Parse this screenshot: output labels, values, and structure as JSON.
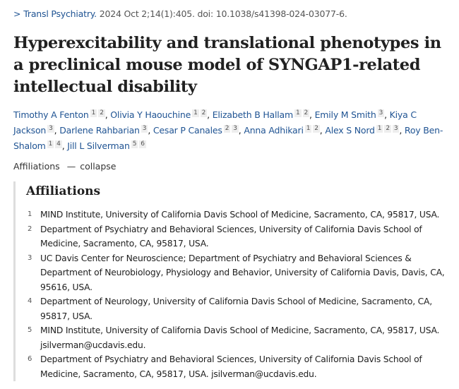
{
  "citation": {
    "journal": "Transl Psychiatry.",
    "details": "2024 Oct 2;14(1):405. doi: 10.1038/s41398-024-03077-6."
  },
  "title": "Hyperexcitability and translational phenotypes in a preclinical mouse model of SYNGAP1-related intellectual disability",
  "authors": [
    {
      "name": "Timothy A Fenton",
      "sups": [
        "1",
        "2"
      ]
    },
    {
      "name": "Olivia Y Haouchine",
      "sups": [
        "1",
        "2"
      ]
    },
    {
      "name": "Elizabeth B Hallam",
      "sups": [
        "1",
        "2"
      ]
    },
    {
      "name": "Emily M Smith",
      "sups": [
        "3"
      ]
    },
    {
      "name": "Kiya C Jackson",
      "sups": [
        "3"
      ]
    },
    {
      "name": "Darlene Rahbarian",
      "sups": [
        "3"
      ]
    },
    {
      "name": "Cesar P Canales",
      "sups": [
        "2",
        "3"
      ]
    },
    {
      "name": "Anna Adhikari",
      "sups": [
        "1",
        "2"
      ]
    },
    {
      "name": "Alex S Nord",
      "sups": [
        "1",
        "2",
        "3"
      ]
    },
    {
      "name": "Roy Ben-Shalom",
      "sups": [
        "1",
        "4"
      ]
    },
    {
      "name": "Jill L Silverman",
      "sups": [
        "5",
        "6"
      ]
    }
  ],
  "affiliations_toggle": {
    "label": "Affiliations",
    "action": "collapse"
  },
  "affiliations": {
    "heading": "Affiliations",
    "items": [
      {
        "n": "1",
        "text": "MIND Institute, University of California Davis School of Medicine, Sacramento, CA, 95817, USA."
      },
      {
        "n": "2",
        "text": "Department of Psychiatry and Behavioral Sciences, University of California Davis School of Medicine, Sacramento, CA, 95817, USA."
      },
      {
        "n": "3",
        "text": "UC Davis Center for Neuroscience; Department of Psychiatry and Behavioral Sciences & Department of Neurobiology, Physiology and Behavior, University of California Davis, Davis, CA, 95616, USA."
      },
      {
        "n": "4",
        "text": "Department of Neurology, University of California Davis School of Medicine, Sacramento, CA, 95817, USA."
      },
      {
        "n": "5",
        "text": "MIND Institute, University of California Davis School of Medicine, Sacramento, CA, 95817, USA. jsilverman@ucdavis.edu."
      },
      {
        "n": "6",
        "text": "Department of Psychiatry and Behavioral Sciences, University of California Davis School of Medicine, Sacramento, CA, 95817, USA. jsilverman@ucdavis.edu."
      }
    ]
  }
}
